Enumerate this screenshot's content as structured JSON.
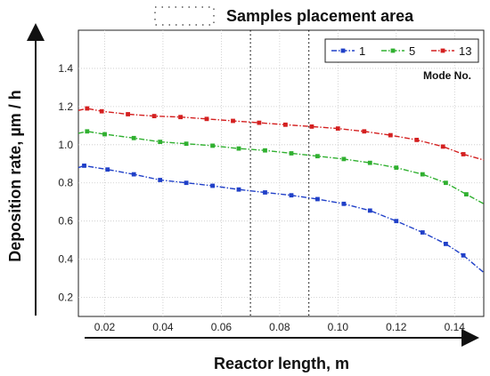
{
  "chart_data": {
    "type": "line",
    "xlabel": "Reactor length, m",
    "ylabel": "Deposition rate, µm / h",
    "xlim": [
      0.011,
      0.15
    ],
    "ylim": [
      0.1,
      1.6
    ],
    "xticks": [
      0.02,
      0.04,
      0.06,
      0.08,
      0.1,
      0.12,
      0.14
    ],
    "xtick_labels": [
      "0.02",
      "0.04",
      "0.06",
      "0.08",
      "0.10",
      "0.12",
      "0.14"
    ],
    "yticks": [
      0.2,
      0.4,
      0.6,
      0.8,
      1.0,
      1.2,
      1.4
    ],
    "ytick_labels": [
      "0.2",
      "0.4",
      "0.6",
      "0.8",
      "1.0",
      "1.2",
      "1.4"
    ],
    "grid": true,
    "legend": {
      "title": "Mode No.",
      "placement": "top-right"
    },
    "annotation": {
      "label": "Samples placement area",
      "x_range": [
        0.07,
        0.09
      ]
    },
    "series": [
      {
        "name": "13",
        "color": "#d42020",
        "x": [
          0.011,
          0.014,
          0.019,
          0.028,
          0.037,
          0.046,
          0.055,
          0.064,
          0.073,
          0.082,
          0.091,
          0.1,
          0.109,
          0.118,
          0.127,
          0.136,
          0.143,
          0.15
        ],
        "y": [
          1.18,
          1.19,
          1.175,
          1.16,
          1.15,
          1.145,
          1.135,
          1.125,
          1.115,
          1.105,
          1.095,
          1.085,
          1.07,
          1.05,
          1.025,
          0.99,
          0.95,
          0.92
        ]
      },
      {
        "name": "5",
        "color": "#30b030",
        "x": [
          0.011,
          0.014,
          0.02,
          0.03,
          0.039,
          0.048,
          0.057,
          0.066,
          0.075,
          0.084,
          0.093,
          0.102,
          0.111,
          0.12,
          0.129,
          0.137,
          0.144,
          0.15
        ],
        "y": [
          1.06,
          1.07,
          1.055,
          1.035,
          1.015,
          1.005,
          0.995,
          0.98,
          0.97,
          0.955,
          0.94,
          0.925,
          0.905,
          0.88,
          0.845,
          0.8,
          0.74,
          0.69
        ]
      },
      {
        "name": "1",
        "color": "#2040c8",
        "x": [
          0.011,
          0.013,
          0.021,
          0.03,
          0.039,
          0.048,
          0.057,
          0.066,
          0.075,
          0.084,
          0.093,
          0.102,
          0.111,
          0.12,
          0.129,
          0.137,
          0.143,
          0.15
        ],
        "y": [
          0.88,
          0.89,
          0.87,
          0.845,
          0.815,
          0.8,
          0.785,
          0.765,
          0.75,
          0.735,
          0.715,
          0.69,
          0.655,
          0.6,
          0.54,
          0.48,
          0.42,
          0.33
        ]
      }
    ],
    "legend_order": [
      "1",
      "5",
      "13"
    ]
  }
}
